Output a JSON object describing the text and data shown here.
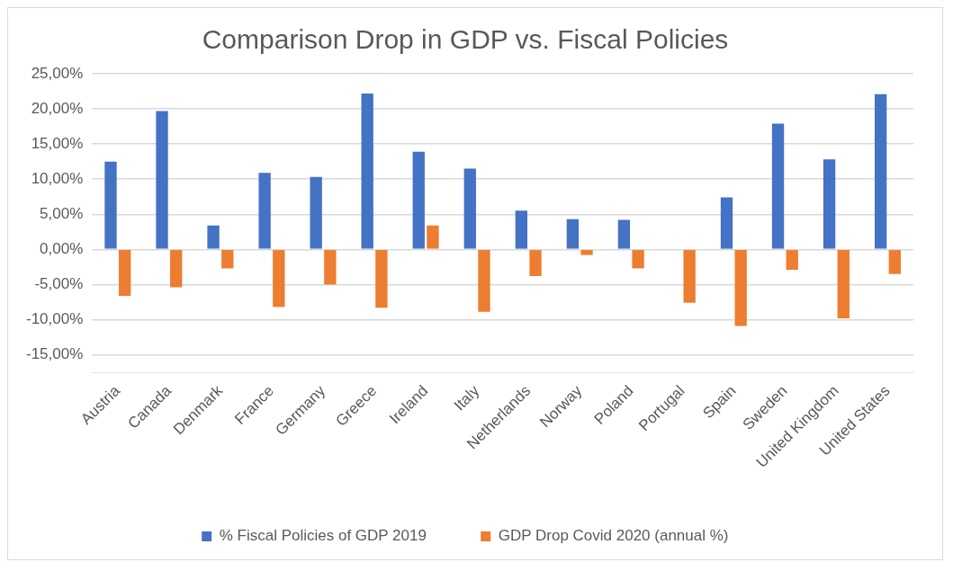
{
  "chart_data": {
    "type": "bar",
    "title": "Comparison Drop in GDP vs. Fiscal Policies",
    "categories": [
      "Austria",
      "Canada",
      "Denmark",
      "France",
      "Germany",
      "Greece",
      "Ireland",
      "Italy",
      "Netherlands",
      "Norway",
      "Poland",
      "Portugal",
      "Spain",
      "Sweden",
      "United Kingdom",
      "United States"
    ],
    "series": [
      {
        "name": "% Fiscal Policies of GDP 2019",
        "color": "#4472c4",
        "values": [
          12.5,
          19.7,
          3.4,
          10.9,
          10.3,
          22.2,
          13.9,
          11.5,
          5.5,
          4.3,
          4.2,
          null,
          7.4,
          17.9,
          12.8,
          22.1
        ]
      },
      {
        "name": "GDP Drop Covid 2020 (annual %)",
        "color": "#ed7d31",
        "values": [
          -6.6,
          -5.4,
          -2.7,
          -8.2,
          -5.0,
          -8.3,
          3.4,
          -8.9,
          -3.8,
          -0.8,
          -2.7,
          -7.6,
          -10.9,
          -2.9,
          -9.8,
          -3.5
        ]
      }
    ],
    "ylim": [
      -17.5,
      25
    ],
    "yticks": [
      {
        "value": -15,
        "label": "-15,00%"
      },
      {
        "value": -10,
        "label": "-10,00%"
      },
      {
        "value": -5,
        "label": "-5,00%"
      },
      {
        "value": 0,
        "label": "0,00%"
      },
      {
        "value": 5,
        "label": "5,00%"
      },
      {
        "value": 10,
        "label": "10,00%"
      },
      {
        "value": 15,
        "label": "15,00%"
      },
      {
        "value": 20,
        "label": "20,00%"
      },
      {
        "value": 25,
        "label": "25,00%"
      }
    ],
    "grid": "y",
    "legend": "bottom"
  }
}
